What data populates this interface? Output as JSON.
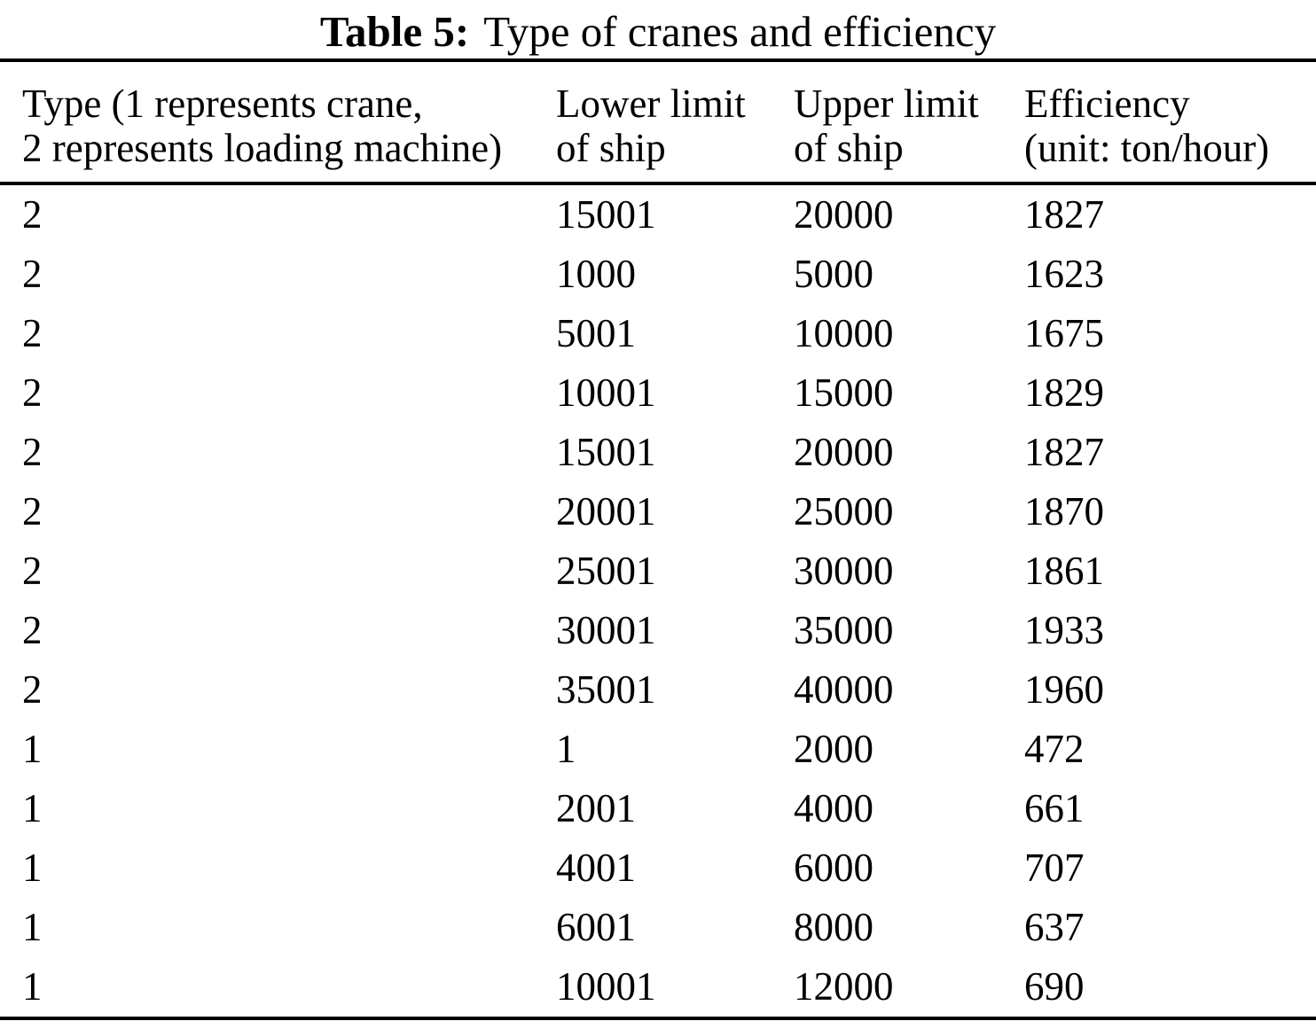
{
  "document": {
    "caption": {
      "label": "Table 5:",
      "text": "Type of cranes and efficiency"
    }
  },
  "table": {
    "columns": [
      {
        "line1": "Type (1 represents crane,",
        "line2": "2 represents loading machine)"
      },
      {
        "line1": "Lower limit",
        "line2": "of ship"
      },
      {
        "line1": "Upper limit",
        "line2": "of ship"
      },
      {
        "line1": "Efficiency",
        "line2": "(unit: ton/hour)"
      }
    ],
    "rows": [
      [
        "2",
        "15001",
        "20000",
        "1827"
      ],
      [
        "2",
        "1000",
        "5000",
        "1623"
      ],
      [
        "2",
        "5001",
        "10000",
        "1675"
      ],
      [
        "2",
        "10001",
        "15000",
        "1829"
      ],
      [
        "2",
        "15001",
        "20000",
        "1827"
      ],
      [
        "2",
        "20001",
        "25000",
        "1870"
      ],
      [
        "2",
        "25001",
        "30000",
        "1861"
      ],
      [
        "2",
        "30001",
        "35000",
        "1933"
      ],
      [
        "2",
        "35001",
        "40000",
        "1960"
      ],
      [
        "1",
        "1",
        "2000",
        "472"
      ],
      [
        "1",
        "2001",
        "4000",
        "661"
      ],
      [
        "1",
        "4001",
        "6000",
        "707"
      ],
      [
        "1",
        "6001",
        "8000",
        "637"
      ],
      [
        "1",
        "10001",
        "12000",
        "690"
      ]
    ]
  },
  "chart_data": {
    "type": "table",
    "title": "Table 5: Type of cranes and efficiency",
    "columns": [
      "Type (1 represents crane, 2 represents loading machine)",
      "Lower limit of ship",
      "Upper limit of ship",
      "Efficiency (unit: ton/hour)"
    ],
    "rows": [
      [
        2,
        15001,
        20000,
        1827
      ],
      [
        2,
        1000,
        5000,
        1623
      ],
      [
        2,
        5001,
        10000,
        1675
      ],
      [
        2,
        10001,
        15000,
        1829
      ],
      [
        2,
        15001,
        20000,
        1827
      ],
      [
        2,
        20001,
        25000,
        1870
      ],
      [
        2,
        25001,
        30000,
        1861
      ],
      [
        2,
        30001,
        35000,
        1933
      ],
      [
        2,
        35001,
        40000,
        1960
      ],
      [
        1,
        1,
        2000,
        472
      ],
      [
        1,
        2001,
        4000,
        661
      ],
      [
        1,
        4001,
        6000,
        707
      ],
      [
        1,
        6001,
        8000,
        637
      ],
      [
        1,
        10001,
        12000,
        690
      ]
    ]
  },
  "colors": {
    "text": "#000000",
    "rule": "#000000",
    "background": "#ffffff"
  }
}
